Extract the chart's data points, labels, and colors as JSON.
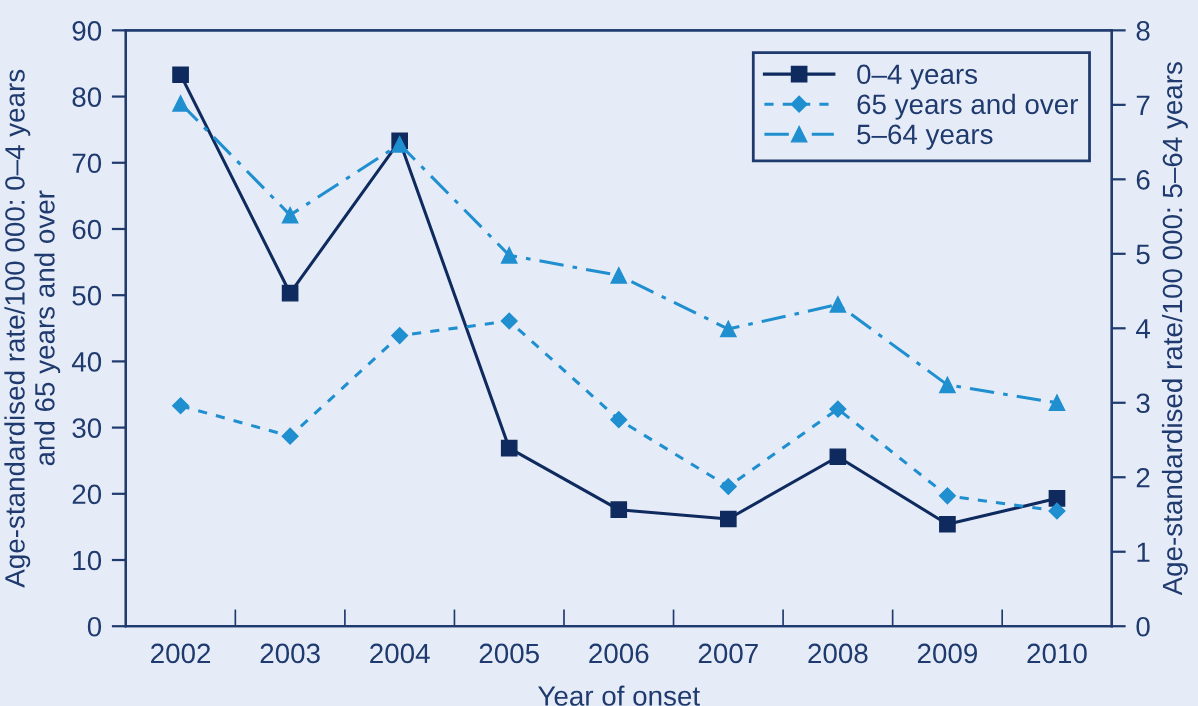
{
  "chart_data": {
    "type": "line",
    "categories": [
      "2002",
      "2003",
      "2004",
      "2005",
      "2006",
      "2007",
      "2008",
      "2009",
      "2010"
    ],
    "series": [
      {
        "name": "0–4 years",
        "color": "#0f2a5e",
        "marker": "square",
        "line_style": "solid",
        "values": [
          83.3,
          50.3,
          73.3,
          26.9,
          17.6,
          16.2,
          25.6,
          15.4,
          19.3
        ]
      },
      {
        "name": "65 years and over",
        "color": "#1f8fd0",
        "marker": "diamond",
        "line_style": "dashed",
        "values": [
          33.3,
          28.7,
          43.9,
          46.1,
          31.2,
          21.1,
          32.8,
          19.7,
          17.4
        ]
      },
      {
        "name": "5–64 years",
        "color": "#1f8fd0",
        "marker": "triangle",
        "line_style": "dashdot",
        "axis": "y2",
        "values": [
          7.02,
          5.52,
          6.47,
          4.98,
          4.71,
          3.99,
          4.32,
          3.24,
          3.0
        ]
      }
    ],
    "xlabel": "Year of onset",
    "ylabel": "Age-standardised rate/100 000: 0–4 years\nand 65 years and over",
    "y2label": "Age-standardised rate/100 000: 5–64 years",
    "ylim": [
      0,
      90
    ],
    "yticks": [
      0,
      10,
      20,
      30,
      40,
      50,
      60,
      70,
      80,
      90
    ],
    "y2lim": [
      0,
      8
    ],
    "y2ticks": [
      0,
      1,
      2,
      3,
      4,
      5,
      6,
      7,
      8
    ],
    "grid": false,
    "legend": "top right"
  }
}
